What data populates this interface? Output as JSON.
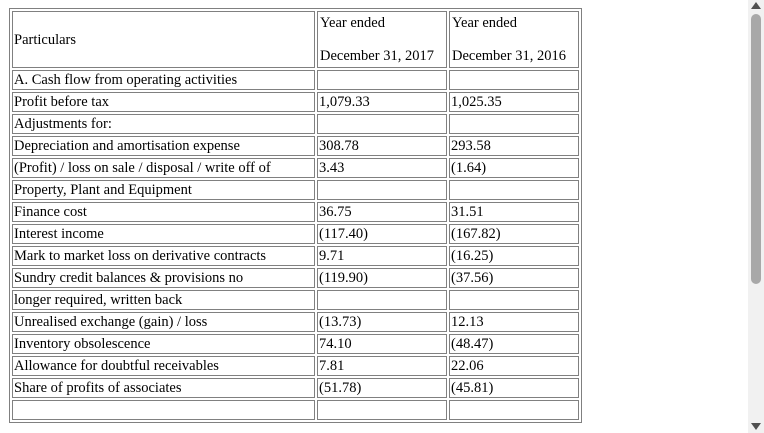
{
  "header": {
    "particulars": "Particulars",
    "col1_line1": "Year ended",
    "col1_line2": "December 31, 2017",
    "col2_line1": "Year ended",
    "col2_line2": "December 31, 2016"
  },
  "rows": [
    {
      "label": "A. Cash flow from operating activities",
      "v2017": "",
      "v2016": ""
    },
    {
      "label": "Profit before tax",
      "v2017": "1,079.33",
      "v2016": "1,025.35"
    },
    {
      "label": "Adjustments for:",
      "v2017": "",
      "v2016": ""
    },
    {
      "label": "Depreciation and amortisation expense",
      "v2017": "308.78",
      "v2016": "293.58"
    },
    {
      "label": "(Profit) / loss on sale / disposal / write off of",
      "v2017": "3.43",
      "v2016": "(1.64)"
    },
    {
      "label": "Property, Plant and Equipment",
      "v2017": "",
      "v2016": ""
    },
    {
      "label": "Finance cost",
      "v2017": "36.75",
      "v2016": "31.51"
    },
    {
      "label": "Interest income",
      "v2017": "(117.40)",
      "v2016": "(167.82)"
    },
    {
      "label": "Mark to market loss on derivative contracts",
      "v2017": "9.71",
      "v2016": "(16.25)"
    },
    {
      "label": "Sundry credit balances & provisions no",
      "v2017": "(119.90)",
      "v2016": "(37.56)"
    },
    {
      "label": "longer required, written back",
      "v2017": "",
      "v2016": ""
    },
    {
      "label": "Unrealised exchange (gain) / loss",
      "v2017": "(13.73)",
      "v2016": "12.13"
    },
    {
      "label": "Inventory obsolescence",
      "v2017": "74.10",
      "v2016": "(48.47)"
    },
    {
      "label": "Allowance for doubtful receivables",
      "v2017": "7.81",
      "v2016": "22.06"
    },
    {
      "label": "Share of profits of associates",
      "v2017": "(51.78)",
      "v2016": "(45.81)"
    },
    {
      "label": "",
      "v2017": "",
      "v2016": ""
    }
  ]
}
